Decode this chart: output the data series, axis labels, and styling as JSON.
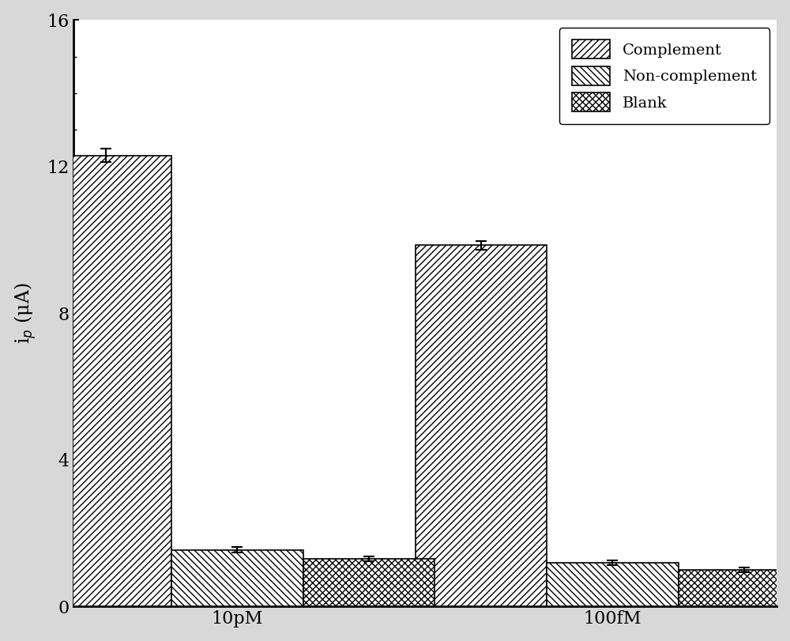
{
  "groups": [
    "10pM",
    "100fM"
  ],
  "categories": [
    "Complement",
    "Non-complement",
    "Blank"
  ],
  "values": [
    [
      12.3,
      1.55,
      1.3
    ],
    [
      9.85,
      1.2,
      1.0
    ]
  ],
  "errors": [
    [
      0.18,
      0.07,
      0.06
    ],
    [
      0.12,
      0.06,
      0.06
    ]
  ],
  "ylabel": "i$_p$ (μA)",
  "ylim": [
    0,
    16
  ],
  "yticks": [
    0,
    4,
    8,
    12,
    16
  ],
  "bar_width": 0.28,
  "group_centers": [
    0.35,
    1.15
  ],
  "xlim": [
    0.0,
    1.5
  ],
  "legend_labels": [
    "Complement",
    "Non-complement",
    "Blank"
  ],
  "hatch_complement": "////",
  "hatch_noncomplement": "\\\\\\\\",
  "hatch_blank": "xxxx",
  "facecolor": "white",
  "edgecolor": "black",
  "plot_bg": "white",
  "fig_bg": "#d8d8d8",
  "label_fontsize": 17,
  "tick_fontsize": 16,
  "legend_fontsize": 14,
  "xtick_labels": [
    "10pM",
    "100fM"
  ]
}
